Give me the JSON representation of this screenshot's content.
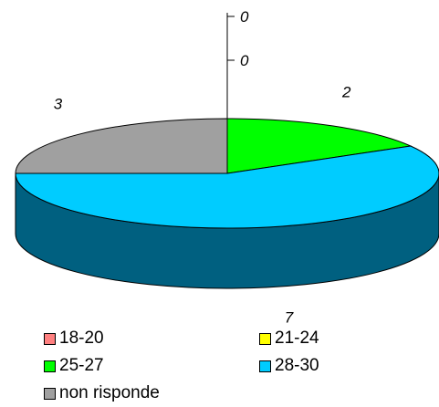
{
  "chart_data": {
    "type": "pie",
    "style": "3d",
    "categories": [
      "18-20",
      "21-24",
      "25-27",
      "28-30",
      "non risponde"
    ],
    "values": [
      0,
      0,
      2,
      7,
      3
    ],
    "data_labels": [
      "0",
      "0",
      "2",
      "7",
      "3"
    ],
    "colors": [
      "#ff8080",
      "#ffff00",
      "#00ff00",
      "#00ccff",
      "#a0a0a0"
    ],
    "side_colors": [
      "#c06060",
      "#c0c000",
      "#00a000",
      "#006080",
      "#707070"
    ],
    "legend": {
      "placement": "bottom",
      "entries": [
        "18-20",
        "21-24",
        "25-27",
        "28-30",
        "non risponde"
      ]
    }
  }
}
